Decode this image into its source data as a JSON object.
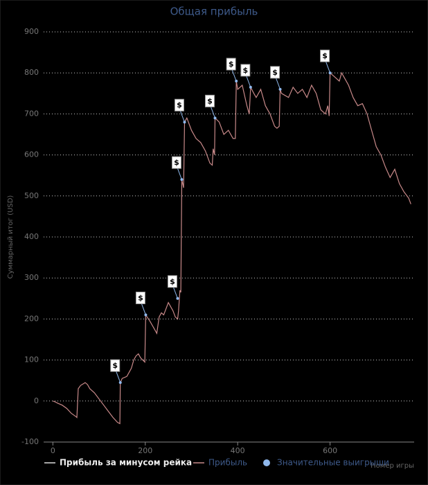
{
  "chart_data": {
    "type": "line",
    "title": "Общая прибыль",
    "y_label": "Суммарный итог (USD)",
    "x_label": "Номер игры",
    "flag_label": "$",
    "xlim": [
      -20,
      782
    ],
    "xticks": [
      0,
      200,
      400,
      600
    ],
    "ylim": [
      -100,
      900
    ],
    "yticks": [
      -100,
      0,
      100,
      200,
      300,
      400,
      500,
      600,
      700,
      800,
      900
    ],
    "grid": true,
    "series": [
      {
        "name": "Прибыль за минусом рейка",
        "color": "#dddddd"
      },
      {
        "name": "Прибыль",
        "color": "#c98a8a",
        "x": [
          0,
          5,
          10,
          20,
          30,
          40,
          50,
          52,
          55,
          60,
          70,
          75,
          80,
          90,
          100,
          110,
          120,
          130,
          140,
          145,
          146,
          150,
          160,
          165,
          170,
          175,
          180,
          185,
          190,
          199,
          201,
          210,
          220,
          225,
          230,
          235,
          240,
          250,
          255,
          260,
          265,
          270,
          272,
          275,
          277,
          279,
          283,
          285,
          290,
          300,
          310,
          320,
          330,
          340,
          345,
          347,
          350,
          351,
          360,
          370,
          380,
          390,
          395,
          397,
          400,
          410,
          420,
          425,
          428,
          435,
          440,
          450,
          460,
          470,
          480,
          485,
          490,
          492,
          495,
          510,
          520,
          530,
          540,
          550,
          560,
          570,
          580,
          590,
          595,
          598,
          600,
          610,
          620,
          625,
          630,
          640,
          650,
          660,
          670,
          680,
          690,
          700,
          710,
          720,
          730,
          740,
          750,
          760,
          770,
          775
        ],
        "values": [
          0,
          -2,
          -5,
          -10,
          -18,
          -30,
          -38,
          -40,
          30,
          38,
          45,
          40,
          30,
          20,
          5,
          -10,
          -25,
          -40,
          -52,
          -55,
          45,
          55,
          60,
          70,
          80,
          100,
          110,
          115,
          105,
          95,
          210,
          195,
          175,
          165,
          205,
          215,
          210,
          240,
          230,
          220,
          205,
          200,
          220,
          270,
          265,
          540,
          520,
          680,
          690,
          660,
          640,
          630,
          610,
          580,
          575,
          615,
          600,
          690,
          680,
          650,
          660,
          640,
          640,
          780,
          760,
          770,
          720,
          700,
          765,
          750,
          740,
          760,
          720,
          700,
          670,
          665,
          670,
          760,
          750,
          740,
          765,
          750,
          760,
          740,
          770,
          750,
          710,
          700,
          720,
          695,
          800,
          790,
          780,
          800,
          790,
          770,
          740,
          720,
          725,
          700,
          660,
          620,
          600,
          570,
          545,
          565,
          530,
          510,
          495,
          480
        ]
      },
      {
        "name": "Значительные выигрыши",
        "color": "#8fb8ec",
        "x": [
          146,
          201,
          270,
          279,
          285,
          351,
          397,
          428,
          492,
          600
        ],
        "values": [
          45,
          210,
          250,
          540,
          680,
          690,
          780,
          765,
          760,
          800
        ]
      }
    ]
  }
}
